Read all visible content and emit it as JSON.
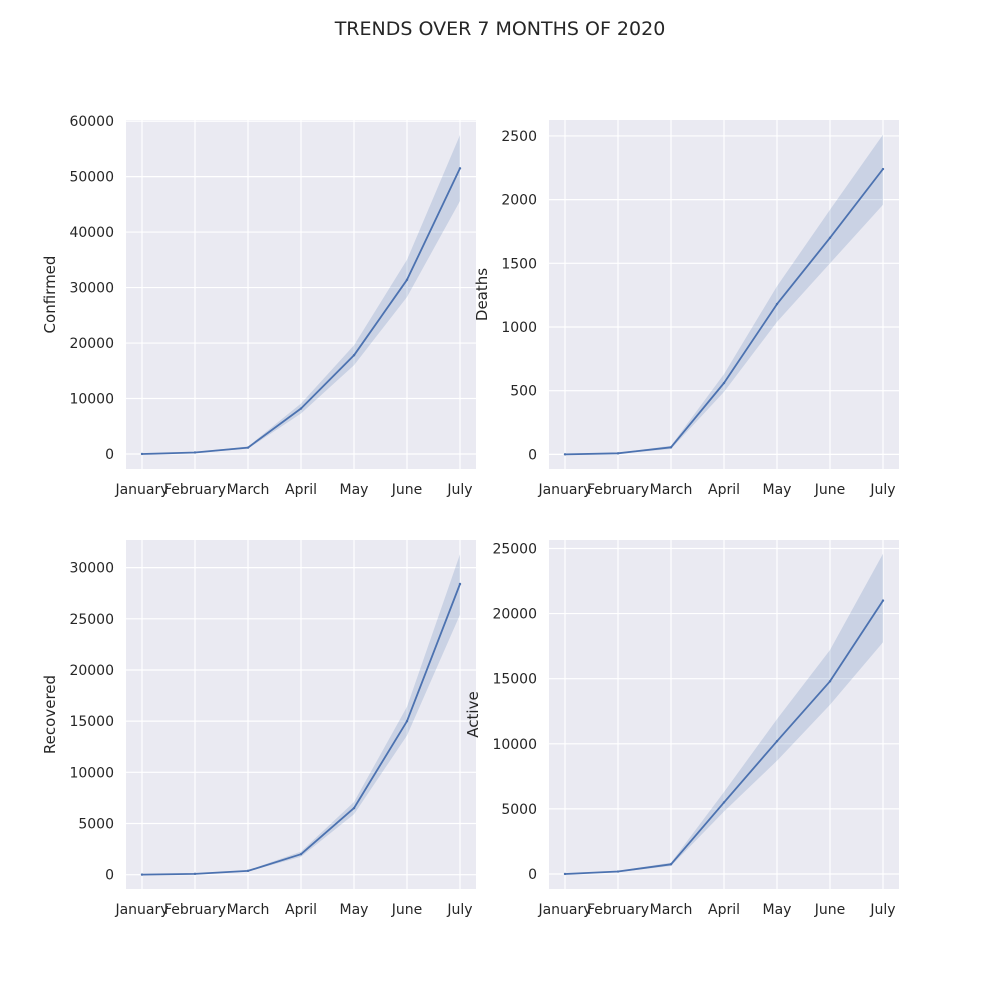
{
  "figure": {
    "title": "TRENDS OVER 7 MONTHS OF 2020"
  },
  "colors": {
    "plot_background": "#EAEAF2",
    "grid": "#FFFFFF",
    "line": "#4C72B0",
    "band": "#4C72B0",
    "text": "#262626"
  },
  "chart_data": [
    {
      "type": "line",
      "position": "top-left",
      "ylabel": "Confirmed",
      "xlabel": "",
      "categories": [
        "January",
        "February",
        "March",
        "April",
        "May",
        "June",
        "July"
      ],
      "values": [
        10,
        280,
        1150,
        8200,
        17800,
        31400,
        51500
      ],
      "ci_low": [
        0,
        200,
        950,
        7300,
        16000,
        28300,
        45600
      ],
      "ci_high": [
        20,
        360,
        1350,
        9100,
        19600,
        35000,
        57500
      ],
      "yticks": [
        0,
        10000,
        20000,
        30000,
        40000,
        50000,
        60000
      ],
      "ylim": [
        -2700,
        60200
      ],
      "grid": true
    },
    {
      "type": "line",
      "position": "top-right",
      "ylabel": "Deaths",
      "xlabel": "",
      "categories": [
        "January",
        "February",
        "March",
        "April",
        "May",
        "June",
        "July"
      ],
      "values": [
        0,
        8,
        55,
        560,
        1180,
        1700,
        2240
      ],
      "ci_low": [
        0,
        5,
        42,
        490,
        1040,
        1500,
        1960
      ],
      "ci_high": [
        1,
        12,
        68,
        630,
        1320,
        1920,
        2510
      ],
      "yticks": [
        0,
        500,
        1000,
        1500,
        2000,
        2500
      ],
      "ylim": [
        -115,
        2625
      ],
      "grid": true
    },
    {
      "type": "line",
      "position": "bottom-left",
      "ylabel": "Recovered",
      "xlabel": "",
      "categories": [
        "January",
        "February",
        "March",
        "April",
        "May",
        "June",
        "July"
      ],
      "values": [
        5,
        80,
        370,
        2000,
        6500,
        15000,
        28400
      ],
      "ci_low": [
        0,
        50,
        300,
        1750,
        5900,
        13600,
        25400
      ],
      "ci_high": [
        10,
        110,
        440,
        2250,
        7100,
        16400,
        31300
      ],
      "yticks": [
        0,
        5000,
        10000,
        15000,
        20000,
        25000,
        30000
      ],
      "ylim": [
        -1400,
        32700
      ],
      "grid": true
    },
    {
      "type": "line",
      "position": "bottom-right",
      "ylabel": "Active",
      "xlabel": "",
      "categories": [
        "January",
        "February",
        "March",
        "April",
        "May",
        "June",
        "July"
      ],
      "values": [
        5,
        190,
        750,
        5500,
        10200,
        14800,
        21000
      ],
      "ci_low": [
        0,
        150,
        620,
        4800,
        8700,
        13000,
        17800
      ],
      "ci_high": [
        10,
        230,
        880,
        6300,
        11900,
        17200,
        24600
      ],
      "yticks": [
        0,
        5000,
        10000,
        15000,
        20000,
        25000
      ],
      "ylim": [
        -1150,
        25650
      ],
      "grid": true
    }
  ]
}
